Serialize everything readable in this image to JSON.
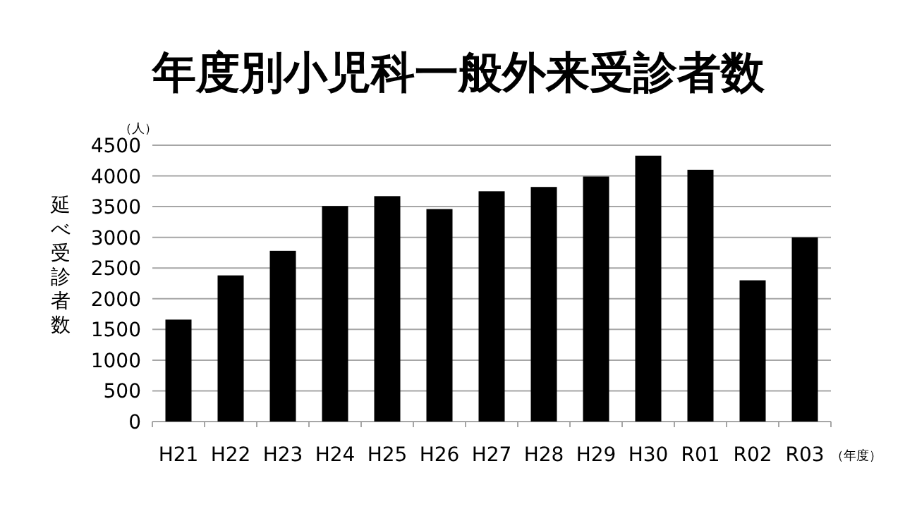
{
  "chart_data": {
    "type": "bar",
    "title": "年度別小児科一般外来受診者数",
    "ylabel": "延べ受診者数",
    "categories": [
      "H21",
      "H22",
      "H23",
      "H24",
      "H25",
      "H26",
      "H27",
      "H28",
      "H29",
      "H30",
      "R01",
      "R02",
      "R03"
    ],
    "values": [
      1660,
      2380,
      2780,
      3510,
      3670,
      3460,
      3750,
      3820,
      3990,
      4330,
      4100,
      2300,
      3000
    ],
    "color": "#000000",
    "ylim": [
      0,
      4500
    ],
    "yticks": [
      0,
      500,
      1000,
      1500,
      2000,
      2500,
      3000,
      3500,
      4000,
      4500
    ],
    "grid": "y",
    "annotations": [
      "（人）",
      "（年度）"
    ]
  }
}
